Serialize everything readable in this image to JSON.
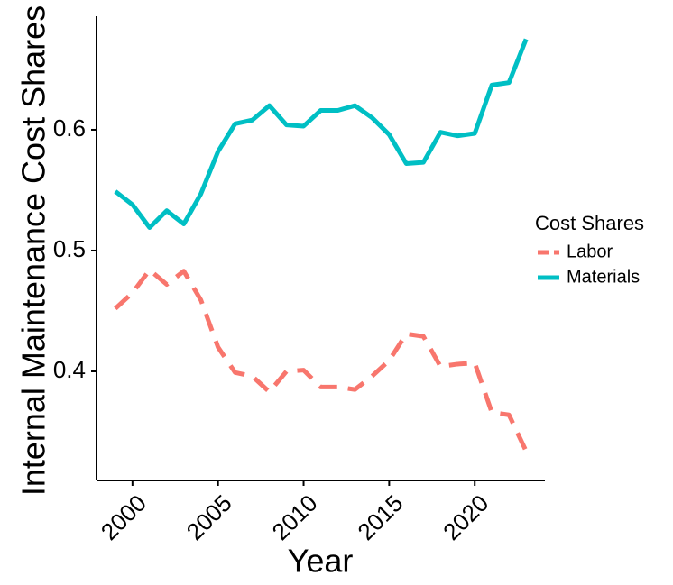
{
  "chart_data": {
    "type": "line",
    "x_label": "Year",
    "y_label": "Internal Maintenance Cost Shares",
    "x": [
      1999,
      2000,
      2001,
      2002,
      2003,
      2004,
      2005,
      2006,
      2007,
      2008,
      2009,
      2010,
      2011,
      2012,
      2013,
      2014,
      2015,
      2016,
      2017,
      2018,
      2019,
      2020,
      2021,
      2022,
      2023
    ],
    "series": [
      {
        "name": "Labor",
        "color": "#f8766d",
        "dashed": true,
        "values": [
          0.452,
          0.465,
          0.484,
          0.472,
          0.483,
          0.459,
          0.42,
          0.399,
          0.396,
          0.383,
          0.4,
          0.401,
          0.387,
          0.387,
          0.385,
          0.396,
          0.409,
          0.431,
          0.429,
          0.404,
          0.406,
          0.407,
          0.366,
          0.364,
          0.334
        ]
      },
      {
        "name": "Materials",
        "color": "#00bfc4",
        "dashed": false,
        "values": [
          0.549,
          0.538,
          0.519,
          0.533,
          0.522,
          0.547,
          0.582,
          0.605,
          0.608,
          0.62,
          0.604,
          0.603,
          0.616,
          0.616,
          0.62,
          0.61,
          0.596,
          0.572,
          0.573,
          0.598,
          0.595,
          0.597,
          0.637,
          0.639,
          0.675
        ]
      }
    ],
    "legend_title": "Cost Shares",
    "legend": "right",
    "xlim": [
      1997.9,
      2024.1
    ],
    "xticks": [
      2000,
      2005,
      2010,
      2015,
      2020
    ],
    "ylim": [
      0.3097,
      0.694
    ],
    "yticks": [
      0.4,
      0.5,
      0.6
    ],
    "grid": false
  }
}
